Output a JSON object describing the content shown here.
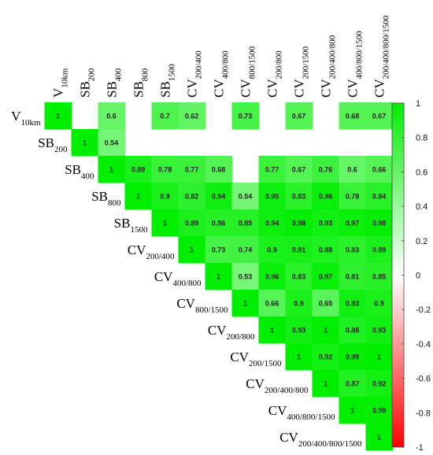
{
  "chart_data": {
    "type": "heatmap",
    "title": "",
    "variables": [
      {
        "base": "V",
        "sub": "10km"
      },
      {
        "base": "SB",
        "sub": "200"
      },
      {
        "base": "SB",
        "sub": "400"
      },
      {
        "base": "SB",
        "sub": "800"
      },
      {
        "base": "SB",
        "sub": "1500"
      },
      {
        "base": "CV",
        "sub": "200/400"
      },
      {
        "base": "CV",
        "sub": "400/800"
      },
      {
        "base": "CV",
        "sub": "800/1500"
      },
      {
        "base": "CV",
        "sub": "200/800"
      },
      {
        "base": "CV",
        "sub": "200/1500"
      },
      {
        "base": "CV",
        "sub": "200/400/800"
      },
      {
        "base": "CV",
        "sub": "400/800/1500"
      },
      {
        "base": "CV",
        "sub": "200/400/800/1500"
      }
    ],
    "matrix": [
      [
        1,
        null,
        0.6,
        null,
        0.7,
        0.62,
        null,
        0.73,
        null,
        0.67,
        null,
        0.68,
        0.67
      ],
      [
        null,
        1,
        0.54,
        null,
        null,
        null,
        null,
        null,
        null,
        null,
        null,
        null,
        null
      ],
      [
        null,
        null,
        1,
        0.89,
        0.78,
        0.77,
        0.68,
        null,
        0.77,
        0.67,
        0.76,
        0.6,
        0.66
      ],
      [
        null,
        null,
        null,
        1,
        0.9,
        0.82,
        0.94,
        0.54,
        0.95,
        0.83,
        0.96,
        0.78,
        0.84
      ],
      [
        null,
        null,
        null,
        null,
        1,
        0.89,
        0.86,
        0.85,
        0.94,
        0.98,
        0.93,
        0.97,
        0.98
      ],
      [
        null,
        null,
        null,
        null,
        null,
        1,
        0.73,
        0.74,
        0.9,
        0.91,
        0.88,
        0.83,
        0.89
      ],
      [
        null,
        null,
        null,
        null,
        null,
        null,
        1,
        0.53,
        0.96,
        0.83,
        0.97,
        0.81,
        0.85
      ],
      [
        null,
        null,
        null,
        null,
        null,
        null,
        null,
        1,
        0.66,
        0.9,
        0.65,
        0.93,
        0.9
      ],
      [
        null,
        null,
        null,
        null,
        null,
        null,
        null,
        null,
        1,
        0.93,
        1,
        0.88,
        0.93
      ],
      [
        null,
        null,
        null,
        null,
        null,
        null,
        null,
        null,
        null,
        1,
        0.92,
        0.99,
        1
      ],
      [
        null,
        null,
        null,
        null,
        null,
        null,
        null,
        null,
        null,
        null,
        1,
        0.87,
        0.92
      ],
      [
        null,
        null,
        null,
        null,
        null,
        null,
        null,
        null,
        null,
        null,
        null,
        1,
        0.99
      ],
      [
        null,
        null,
        null,
        null,
        null,
        null,
        null,
        null,
        null,
        null,
        null,
        null,
        1
      ]
    ],
    "colorbar": {
      "range": [
        -1,
        1
      ],
      "ticks": [
        1,
        0.8,
        0.6,
        0.4,
        0.2,
        0,
        -0.2,
        -0.4,
        -0.6,
        -0.8,
        -1
      ],
      "tick_labels": [
        "1",
        "0.8",
        "0.6",
        "0.4",
        "0.2",
        "0",
        "-0.2",
        "-0.4",
        "-0.6",
        "-0.8",
        "-1"
      ],
      "colors": {
        "negative": "#ff0000",
        "zero": "#ffffff",
        "positive": "#00ee00"
      }
    }
  }
}
